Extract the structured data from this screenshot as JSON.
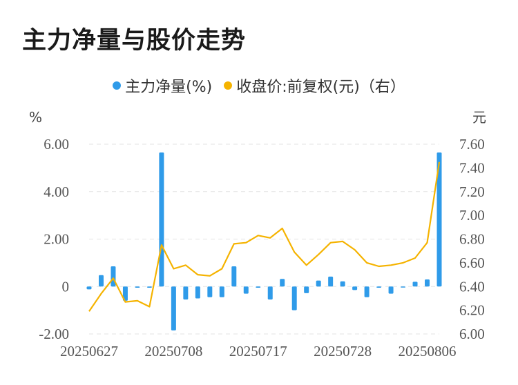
{
  "title": "主力净量与股价走势",
  "legend": {
    "series1": "主力净量(%)",
    "series2": "收盘价:前复权(元)（右）"
  },
  "colors": {
    "bar": "#2f9be9",
    "line": "#f5b300",
    "grid": "#e3e3e3"
  },
  "chart_data": {
    "type": "bar+line",
    "title": "主力净量与股价走势",
    "left_axis_unit": "%",
    "right_axis_unit": "元",
    "left_ylim": [
      -2,
      6
    ],
    "right_ylim": [
      6.0,
      7.6
    ],
    "left_ticks": [
      "6.00",
      "4.00",
      "2.00",
      "0",
      "-2.00"
    ],
    "right_ticks": [
      "7.60",
      "7.40",
      "7.20",
      "7.00",
      "6.80",
      "6.60",
      "6.40",
      "6.20",
      "6.00"
    ],
    "x_tick_labels": [
      "20250627",
      "20250708",
      "20250717",
      "20250728",
      "20250806"
    ],
    "x_tick_index": [
      0,
      7,
      14,
      21,
      28
    ],
    "series": [
      {
        "name": "主力净量(%)",
        "type": "bar",
        "axis": "left",
        "values": [
          -0.12,
          0.48,
          0.85,
          -0.6,
          -0.05,
          -0.05,
          5.65,
          -1.85,
          -0.55,
          -0.5,
          -0.45,
          -0.45,
          0.85,
          -0.3,
          -0.05,
          -0.55,
          0.32,
          -1.0,
          -0.28,
          0.25,
          0.42,
          0.22,
          -0.15,
          -0.45,
          -0.05,
          -0.3,
          -0.03,
          0.2,
          0.3,
          5.65
        ]
      },
      {
        "name": "收盘价:前复权(元)（右）",
        "type": "line",
        "axis": "right",
        "values": [
          6.19,
          6.34,
          6.47,
          6.27,
          6.28,
          6.23,
          6.75,
          6.55,
          6.58,
          6.5,
          6.49,
          6.55,
          6.76,
          6.77,
          6.83,
          6.81,
          6.89,
          6.69,
          6.58,
          6.67,
          6.77,
          6.78,
          6.71,
          6.6,
          6.57,
          6.58,
          6.6,
          6.64,
          6.77,
          7.45
        ]
      }
    ]
  }
}
